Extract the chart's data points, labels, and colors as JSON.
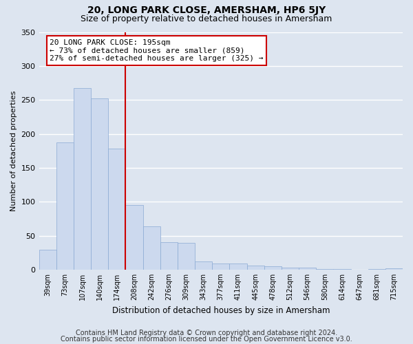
{
  "title": "20, LONG PARK CLOSE, AMERSHAM, HP6 5JY",
  "subtitle": "Size of property relative to detached houses in Amersham",
  "xlabel": "Distribution of detached houses by size in Amersham",
  "ylabel": "Number of detached properties",
  "bin_labels": [
    "39sqm",
    "73sqm",
    "107sqm",
    "140sqm",
    "174sqm",
    "208sqm",
    "242sqm",
    "276sqm",
    "309sqm",
    "343sqm",
    "377sqm",
    "411sqm",
    "445sqm",
    "478sqm",
    "512sqm",
    "546sqm",
    "580sqm",
    "614sqm",
    "647sqm",
    "681sqm",
    "715sqm"
  ],
  "bar_heights": [
    29,
    187,
    267,
    252,
    178,
    95,
    64,
    40,
    39,
    12,
    9,
    9,
    6,
    5,
    3,
    3,
    1,
    1,
    0,
    1,
    2
  ],
  "bar_color": "#ccd9ee",
  "bar_edge_color": "#8aaad4",
  "vline_color": "#cc0000",
  "annotation_text": "20 LONG PARK CLOSE: 195sqm\n← 73% of detached houses are smaller (859)\n27% of semi-detached houses are larger (325) →",
  "annotation_box_edge": "#cc0000",
  "ylim": [
    0,
    350
  ],
  "yticks": [
    0,
    50,
    100,
    150,
    200,
    250,
    300,
    350
  ],
  "footer_line1": "Contains HM Land Registry data © Crown copyright and database right 2024.",
  "footer_line2": "Contains public sector information licensed under the Open Government Licence v3.0.",
  "bg_color": "#dde5f0",
  "plot_bg_color": "#dde5f0",
  "title_fontsize": 10,
  "subtitle_fontsize": 9,
  "footer_fontsize": 7
}
